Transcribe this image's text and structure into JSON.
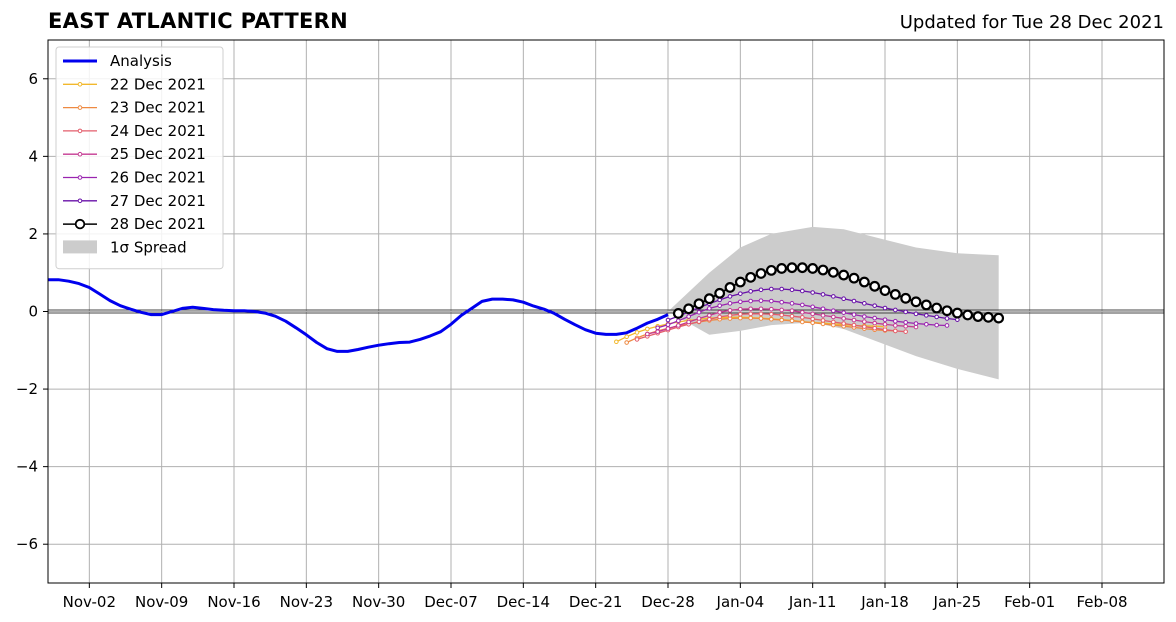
{
  "header": {
    "title": "EAST ATLANTIC PATTERN",
    "subtitle": "Updated for Tue 28 Dec 2021"
  },
  "chart_data": {
    "type": "line",
    "title": "EAST ATLANTIC PATTERN",
    "subtitle": "Updated for Tue 28 Dec 2021",
    "xlabel": "",
    "ylabel": "",
    "x_axis": {
      "type": "date",
      "range": [
        "2021-10-29",
        "2022-02-14"
      ],
      "ticks": [
        {
          "date": "2021-11-02",
          "label": "Nov-02"
        },
        {
          "date": "2021-11-09",
          "label": "Nov-09"
        },
        {
          "date": "2021-11-16",
          "label": "Nov-16"
        },
        {
          "date": "2021-11-23",
          "label": "Nov-23"
        },
        {
          "date": "2021-11-30",
          "label": "Nov-30"
        },
        {
          "date": "2021-12-07",
          "label": "Dec-07"
        },
        {
          "date": "2021-12-14",
          "label": "Dec-14"
        },
        {
          "date": "2021-12-21",
          "label": "Dec-21"
        },
        {
          "date": "2021-12-28",
          "label": "Dec-28"
        },
        {
          "date": "2022-01-04",
          "label": "Jan-04"
        },
        {
          "date": "2022-01-11",
          "label": "Jan-11"
        },
        {
          "date": "2022-01-18",
          "label": "Jan-18"
        },
        {
          "date": "2022-01-25",
          "label": "Jan-25"
        },
        {
          "date": "2022-02-01",
          "label": "Feb-01"
        },
        {
          "date": "2022-02-08",
          "label": "Feb-08"
        }
      ]
    },
    "y_axis": {
      "range": [
        -7,
        7
      ],
      "ticks": [
        {
          "value": -6,
          "label": "−6"
        },
        {
          "value": -4,
          "label": "−4"
        },
        {
          "value": -2,
          "label": "−2"
        },
        {
          "value": 0,
          "label": "0"
        },
        {
          "value": 2,
          "label": "2"
        },
        {
          "value": 4,
          "label": "4"
        },
        {
          "value": 6,
          "label": "6"
        }
      ]
    },
    "grid": true,
    "legend_position": "top-left",
    "series": [
      {
        "name": "Analysis",
        "color": "#0000ee",
        "style": "thick-line",
        "points": [
          [
            "2021-10-29",
            0.82
          ],
          [
            "2021-10-30",
            0.82
          ],
          [
            "2021-10-31",
            0.78
          ],
          [
            "2021-11-01",
            0.72
          ],
          [
            "2021-11-02",
            0.62
          ],
          [
            "2021-11-03",
            0.45
          ],
          [
            "2021-11-04",
            0.28
          ],
          [
            "2021-11-05",
            0.15
          ],
          [
            "2021-11-06",
            0.06
          ],
          [
            "2021-11-07",
            -0.02
          ],
          [
            "2021-11-08",
            -0.08
          ],
          [
            "2021-11-09",
            -0.08
          ],
          [
            "2021-11-10",
            0.0
          ],
          [
            "2021-11-11",
            0.08
          ],
          [
            "2021-11-12",
            0.11
          ],
          [
            "2021-11-13",
            0.08
          ],
          [
            "2021-11-14",
            0.05
          ],
          [
            "2021-11-15",
            0.03
          ],
          [
            "2021-11-16",
            0.02
          ],
          [
            "2021-11-17",
            0.02
          ],
          [
            "2021-11-18",
            0.0
          ],
          [
            "2021-11-19",
            -0.04
          ],
          [
            "2021-11-20",
            -0.12
          ],
          [
            "2021-11-21",
            -0.25
          ],
          [
            "2021-11-22",
            -0.42
          ],
          [
            "2021-11-23",
            -0.6
          ],
          [
            "2021-11-24",
            -0.8
          ],
          [
            "2021-11-25",
            -0.96
          ],
          [
            "2021-11-26",
            -1.03
          ],
          [
            "2021-11-27",
            -1.03
          ],
          [
            "2021-11-28",
            -0.98
          ],
          [
            "2021-11-29",
            -0.92
          ],
          [
            "2021-11-30",
            -0.87
          ],
          [
            "2021-12-01",
            -0.83
          ],
          [
            "2021-12-02",
            -0.8
          ],
          [
            "2021-12-03",
            -0.79
          ],
          [
            "2021-12-04",
            -0.72
          ],
          [
            "2021-12-05",
            -0.63
          ],
          [
            "2021-12-06",
            -0.52
          ],
          [
            "2021-12-07",
            -0.33
          ],
          [
            "2021-12-08",
            -0.1
          ],
          [
            "2021-12-09",
            0.08
          ],
          [
            "2021-12-10",
            0.26
          ],
          [
            "2021-12-11",
            0.32
          ],
          [
            "2021-12-12",
            0.32
          ],
          [
            "2021-12-13",
            0.3
          ],
          [
            "2021-12-14",
            0.24
          ],
          [
            "2021-12-15",
            0.14
          ],
          [
            "2021-12-16",
            0.06
          ],
          [
            "2021-12-17",
            -0.05
          ],
          [
            "2021-12-18",
            -0.2
          ],
          [
            "2021-12-19",
            -0.34
          ],
          [
            "2021-12-20",
            -0.47
          ],
          [
            "2021-12-21",
            -0.56
          ],
          [
            "2021-12-22",
            -0.59
          ],
          [
            "2021-12-23",
            -0.59
          ],
          [
            "2021-12-24",
            -0.55
          ],
          [
            "2021-12-25",
            -0.43
          ],
          [
            "2021-12-26",
            -0.3
          ],
          [
            "2021-12-27",
            -0.2
          ],
          [
            "2021-12-28",
            -0.08
          ]
        ]
      },
      {
        "name": "22 Dec 2021",
        "color": "#f2b82c",
        "style": "small-markers",
        "start": "2021-12-23",
        "values": [
          -0.78,
          -0.65,
          -0.54,
          -0.45,
          -0.38,
          -0.32,
          -0.27,
          -0.23,
          -0.2,
          -0.17,
          -0.16,
          -0.15,
          -0.15,
          -0.16,
          -0.17,
          -0.19,
          -0.21,
          -0.23,
          -0.26,
          -0.28,
          -0.3,
          -0.32,
          -0.34,
          -0.36,
          -0.37,
          -0.38,
          -0.39
        ]
      },
      {
        "name": "23 Dec 2021",
        "color": "#ee8a42",
        "style": "small-markers",
        "start": "2021-12-24",
        "values": [
          -0.8,
          -0.68,
          -0.58,
          -0.5,
          -0.43,
          -0.37,
          -0.32,
          -0.27,
          -0.23,
          -0.2,
          -0.18,
          -0.17,
          -0.17,
          -0.18,
          -0.2,
          -0.22,
          -0.24,
          -0.27,
          -0.29,
          -0.32,
          -0.35,
          -0.38,
          -0.41,
          -0.44,
          -0.47,
          -0.49,
          -0.5
        ]
      },
      {
        "name": "24 Dec 2021",
        "color": "#e35d6b",
        "style": "small-markers",
        "start": "2021-12-25",
        "values": [
          -0.72,
          -0.64,
          -0.56,
          -0.48,
          -0.4,
          -0.33,
          -0.26,
          -0.2,
          -0.14,
          -0.1,
          -0.07,
          -0.06,
          -0.06,
          -0.07,
          -0.09,
          -0.12,
          -0.15,
          -0.19,
          -0.23,
          -0.27,
          -0.31,
          -0.35,
          -0.39,
          -0.43,
          -0.47,
          -0.5,
          -0.52
        ]
      },
      {
        "name": "25 Dec 2021",
        "color": "#c43a92",
        "style": "small-markers",
        "start": "2021-12-26",
        "values": [
          -0.58,
          -0.52,
          -0.44,
          -0.36,
          -0.27,
          -0.18,
          -0.1,
          -0.02,
          0.03,
          0.06,
          0.07,
          0.07,
          0.06,
          0.04,
          0.02,
          -0.02,
          -0.06,
          -0.1,
          -0.14,
          -0.18,
          -0.22,
          -0.26,
          -0.3,
          -0.33,
          -0.36,
          -0.38,
          -0.4
        ]
      },
      {
        "name": "26 Dec 2021",
        "color": "#9a24b0",
        "style": "small-markers",
        "start": "2021-12-27",
        "values": [
          -0.42,
          -0.34,
          -0.24,
          -0.13,
          -0.02,
          0.08,
          0.15,
          0.21,
          0.25,
          0.27,
          0.28,
          0.27,
          0.24,
          0.21,
          0.17,
          0.12,
          0.07,
          0.02,
          -0.03,
          -0.08,
          -0.13,
          -0.17,
          -0.21,
          -0.25,
          -0.28,
          -0.31,
          -0.33,
          -0.35,
          -0.36
        ]
      },
      {
        "name": "27 Dec 2021",
        "color": "#6810a8",
        "style": "small-markers",
        "start": "2021-12-28",
        "values": [
          -0.22,
          -0.12,
          -0.01,
          0.1,
          0.2,
          0.3,
          0.39,
          0.46,
          0.52,
          0.56,
          0.58,
          0.58,
          0.56,
          0.53,
          0.49,
          0.44,
          0.39,
          0.33,
          0.27,
          0.21,
          0.15,
          0.09,
          0.04,
          -0.01,
          -0.06,
          -0.1,
          -0.14,
          -0.18,
          -0.21
        ]
      },
      {
        "name": "28 Dec 2021",
        "color": "#000000",
        "style": "large-circles",
        "start": "2021-12-29",
        "values": [
          -0.05,
          0.07,
          0.2,
          0.33,
          0.47,
          0.62,
          0.76,
          0.88,
          0.98,
          1.06,
          1.11,
          1.13,
          1.13,
          1.11,
          1.07,
          1.01,
          0.94,
          0.86,
          0.76,
          0.65,
          0.54,
          0.44,
          0.34,
          0.25,
          0.17,
          0.09,
          0.02,
          -0.04,
          -0.09,
          -0.13,
          -0.15,
          -0.17
        ]
      }
    ],
    "spread": {
      "name": "1σ Spread",
      "color": "#cccccc",
      "points": [
        [
          "2021-12-28",
          0.0,
          0.0
        ],
        [
          "2022-01-01",
          1.0,
          -0.6
        ],
        [
          "2022-01-04",
          1.65,
          -0.5
        ],
        [
          "2022-01-07",
          2.0,
          -0.35
        ],
        [
          "2022-01-11",
          2.18,
          -0.28
        ],
        [
          "2022-01-14",
          2.12,
          -0.45
        ],
        [
          "2022-01-18",
          1.85,
          -0.85
        ],
        [
          "2022-01-21",
          1.65,
          -1.15
        ],
        [
          "2022-01-25",
          1.5,
          -1.48
        ],
        [
          "2022-01-29",
          1.45,
          -1.75
        ]
      ]
    }
  },
  "legend": {
    "items": [
      {
        "label": "Analysis",
        "color": "#0000ee",
        "kind": "thick-line"
      },
      {
        "label": "22 Dec 2021",
        "color": "#f2b82c",
        "kind": "small-markers"
      },
      {
        "label": "23 Dec 2021",
        "color": "#ee8a42",
        "kind": "small-markers"
      },
      {
        "label": "24 Dec 2021",
        "color": "#e35d6b",
        "kind": "small-markers"
      },
      {
        "label": "25 Dec 2021",
        "color": "#c43a92",
        "kind": "small-markers"
      },
      {
        "label": "26 Dec 2021",
        "color": "#9a24b0",
        "kind": "small-markers"
      },
      {
        "label": "27 Dec 2021",
        "color": "#6810a8",
        "kind": "small-markers"
      },
      {
        "label": "28 Dec 2021",
        "color": "#000000",
        "kind": "large-circles"
      },
      {
        "label": "1σ Spread",
        "color": "#cccccc",
        "kind": "patch"
      }
    ]
  }
}
